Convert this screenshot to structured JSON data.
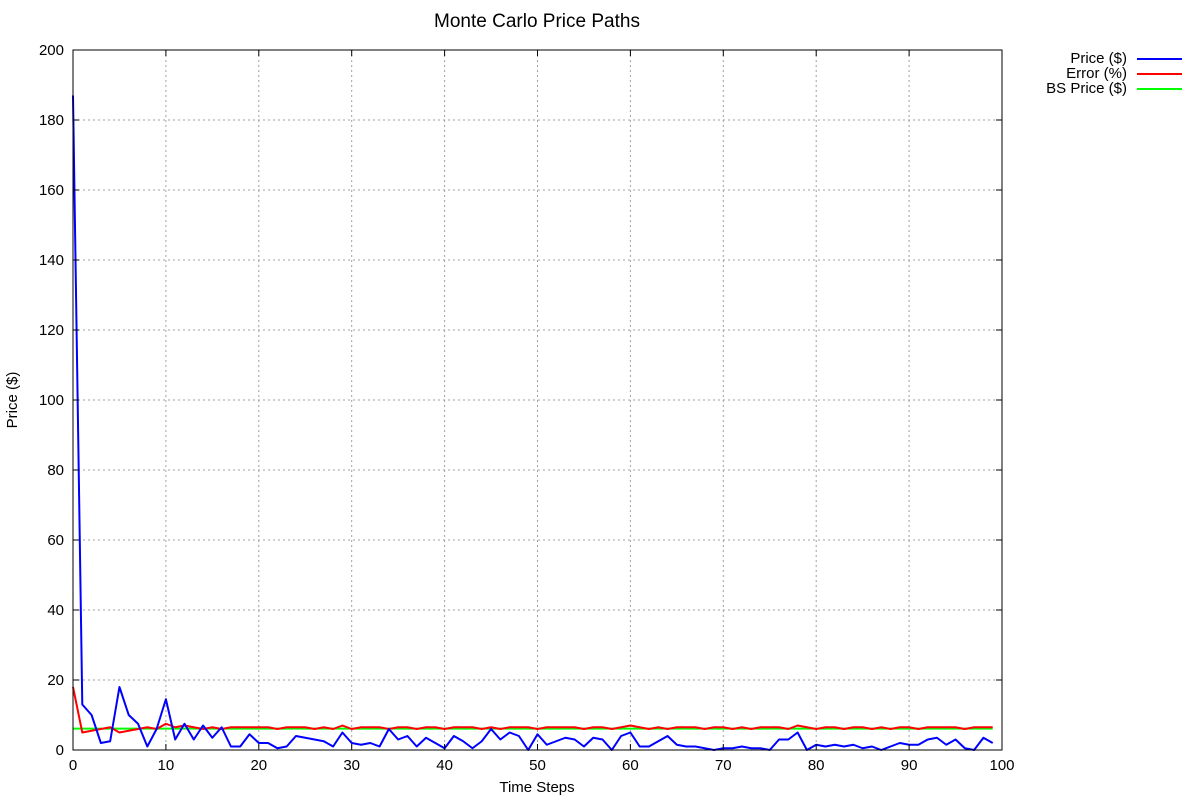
{
  "chart_data": {
    "type": "line",
    "title": "Monte Carlo Price Paths",
    "xlabel": "Time Steps",
    "ylabel": "Price ($)",
    "xlim": [
      0,
      100
    ],
    "ylim": [
      0,
      200
    ],
    "xticks": [
      0,
      10,
      20,
      30,
      40,
      50,
      60,
      70,
      80,
      90,
      100
    ],
    "yticks": [
      0,
      20,
      40,
      60,
      80,
      100,
      120,
      140,
      160,
      180,
      200
    ],
    "grid": true,
    "legend_position": "outside-top-right",
    "x": [
      0,
      1,
      2,
      3,
      4,
      5,
      6,
      7,
      8,
      9,
      10,
      11,
      12,
      13,
      14,
      15,
      16,
      17,
      18,
      19,
      20,
      21,
      22,
      23,
      24,
      25,
      26,
      27,
      28,
      29,
      30,
      31,
      32,
      33,
      34,
      35,
      36,
      37,
      38,
      39,
      40,
      41,
      42,
      43,
      44,
      45,
      46,
      47,
      48,
      49,
      50,
      51,
      52,
      53,
      54,
      55,
      56,
      57,
      58,
      59,
      60,
      61,
      62,
      63,
      64,
      65,
      66,
      67,
      68,
      69,
      70,
      71,
      72,
      73,
      74,
      75,
      76,
      77,
      78,
      79,
      80,
      81,
      82,
      83,
      84,
      85,
      86,
      87,
      88,
      89,
      90,
      91,
      92,
      93,
      94,
      95,
      96,
      97,
      98,
      99
    ],
    "series": [
      {
        "name": "Price ($)",
        "color": "#0000ff",
        "values": [
          187,
          13,
          10,
          2,
          2.5,
          18,
          10,
          7.5,
          1,
          6,
          14.5,
          3,
          7.5,
          3,
          7,
          3.5,
          6.5,
          1,
          1,
          4.5,
          2,
          2,
          0.5,
          1,
          4,
          3.5,
          3,
          2.5,
          1,
          5,
          2,
          1.5,
          2,
          1,
          6,
          3,
          4,
          1,
          3.5,
          2,
          0.5,
          4,
          2.5,
          0.5,
          2.5,
          6,
          3,
          5,
          4,
          0,
          4.5,
          1.5,
          2.5,
          3.5,
          3,
          1,
          3.5,
          3,
          0,
          4,
          5,
          1,
          1,
          2.5,
          4,
          1.5,
          1,
          1,
          0.5,
          0,
          0.5,
          0.5,
          1,
          0.5,
          0.5,
          0,
          3,
          3,
          5,
          0,
          1.5,
          1,
          1.5,
          1,
          1.5,
          0.5,
          1,
          0,
          1,
          2,
          1.5,
          1.5,
          3,
          3.5,
          1.5,
          3,
          0.5,
          0,
          3.5,
          2
        ]
      },
      {
        "name": "Error (%)",
        "color": "#ff0000",
        "values": [
          18,
          5,
          5.5,
          6,
          6.5,
          5,
          5.5,
          6,
          6.5,
          6,
          7.5,
          6.5,
          7,
          6.5,
          6,
          6.5,
          6,
          6.5,
          6.5,
          6.5,
          6.5,
          6.5,
          6,
          6.5,
          6.5,
          6.5,
          6,
          6.5,
          6,
          7,
          6,
          6.5,
          6.5,
          6.5,
          6,
          6.5,
          6.5,
          6,
          6.5,
          6.5,
          6,
          6.5,
          6.5,
          6.5,
          6,
          6.5,
          6,
          6.5,
          6.5,
          6.5,
          6,
          6.5,
          6.5,
          6.5,
          6.5,
          6,
          6.5,
          6.5,
          6,
          6.5,
          7,
          6.5,
          6,
          6.5,
          6,
          6.5,
          6.5,
          6.5,
          6,
          6.5,
          6.5,
          6,
          6.5,
          6,
          6.5,
          6.5,
          6.5,
          6,
          7,
          6.5,
          6,
          6.5,
          6.5,
          6,
          6.5,
          6.5,
          6,
          6.5,
          6,
          6.5,
          6.5,
          6,
          6.5,
          6.5,
          6.5,
          6.5,
          6,
          6.5,
          6.5,
          6.5
        ]
      },
      {
        "name": "BS Price ($)",
        "color": "#00ff00",
        "values": [
          6.1,
          6.1,
          6.1,
          6.1,
          6.1,
          6.1,
          6.1,
          6.1,
          6.1,
          6.1,
          6.1,
          6.1,
          6.1,
          6.1,
          6.1,
          6.1,
          6.1,
          6.1,
          6.1,
          6.1,
          6.1,
          6.1,
          6.1,
          6.1,
          6.1,
          6.1,
          6.1,
          6.1,
          6.1,
          6.1,
          6.1,
          6.1,
          6.1,
          6.1,
          6.1,
          6.1,
          6.1,
          6.1,
          6.1,
          6.1,
          6.1,
          6.1,
          6.1,
          6.1,
          6.1,
          6.1,
          6.1,
          6.1,
          6.1,
          6.1,
          6.1,
          6.1,
          6.1,
          6.1,
          6.1,
          6.1,
          6.1,
          6.1,
          6.1,
          6.1,
          6.1,
          6.1,
          6.1,
          6.1,
          6.1,
          6.1,
          6.1,
          6.1,
          6.1,
          6.1,
          6.1,
          6.1,
          6.1,
          6.1,
          6.1,
          6.1,
          6.1,
          6.1,
          6.1,
          6.1,
          6.1,
          6.1,
          6.1,
          6.1,
          6.1,
          6.1,
          6.1,
          6.1,
          6.1,
          6.1,
          6.1,
          6.1,
          6.1,
          6.1,
          6.1,
          6.1,
          6.1,
          6.1,
          6.1,
          6.1
        ]
      }
    ]
  }
}
